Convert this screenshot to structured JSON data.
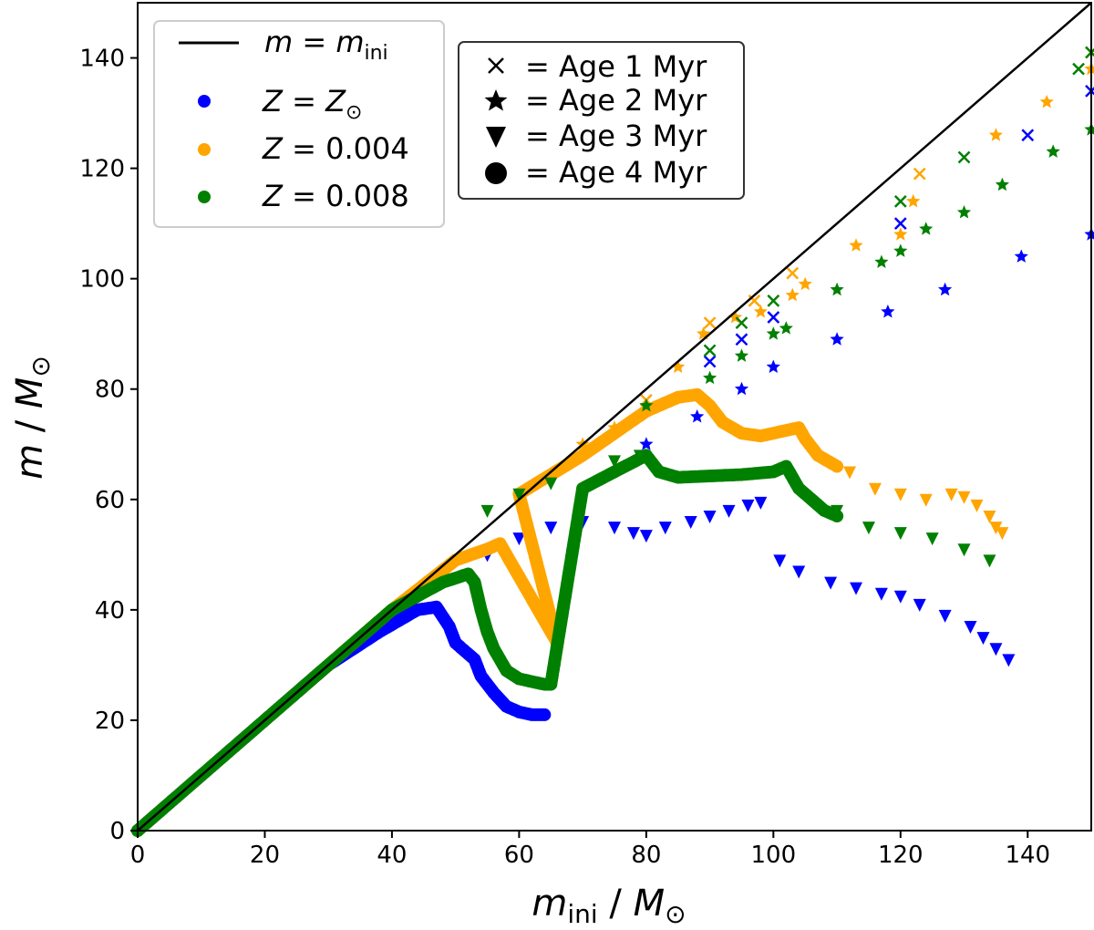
{
  "chart_data": {
    "type": "scatter",
    "xlabel": "m_ini / M_⊙",
    "ylabel": "m / M_⊙",
    "xlim": [
      0,
      150
    ],
    "ylim": [
      0,
      150
    ],
    "xticks": [
      0,
      20,
      40,
      60,
      80,
      100,
      120,
      140
    ],
    "yticks": [
      0,
      20,
      40,
      60,
      80,
      100,
      120,
      140
    ],
    "grid": false,
    "reference_line": {
      "label_math": "m = m_ini",
      "from": [
        0,
        0
      ],
      "to": [
        150,
        150
      ],
      "color": "#000000"
    },
    "legend_metallicity": {
      "placement": "top-left",
      "entries": [
        {
          "label": "m = m_ini",
          "marker": "line",
          "color": "#000000"
        },
        {
          "label": "Z = Z_⊙",
          "marker": "circle",
          "color": "#0000ff"
        },
        {
          "label": "Z = 0.004",
          "marker": "circle",
          "color": "#ffa500"
        },
        {
          "label": "Z = 0.008",
          "marker": "circle",
          "color": "#008000"
        }
      ]
    },
    "legend_age": {
      "placement": "top-center",
      "entries": [
        {
          "marker": "x",
          "label": "= Age 1 Myr"
        },
        {
          "marker": "star",
          "label": "= Age 2 Myr"
        },
        {
          "marker": "triangle-down",
          "label": "= Age 3 Myr"
        },
        {
          "marker": "circle",
          "label": "= Age 4 Myr"
        }
      ]
    },
    "series": [
      {
        "name": "Z = Z_⊙",
        "color": "#0000ff",
        "age1": [
          [
            90,
            85
          ],
          [
            95,
            89
          ],
          [
            100,
            93
          ],
          [
            120,
            110
          ],
          [
            140,
            126
          ],
          [
            150,
            134
          ]
        ],
        "age2": [
          [
            80,
            70
          ],
          [
            88,
            75
          ],
          [
            95,
            80
          ],
          [
            100,
            84
          ],
          [
            110,
            89
          ],
          [
            118,
            94
          ],
          [
            127,
            98
          ],
          [
            139,
            104
          ],
          [
            150,
            108
          ]
        ],
        "age3": [
          [
            55,
            50
          ],
          [
            60,
            53
          ],
          [
            65,
            55
          ],
          [
            70,
            56
          ],
          [
            75,
            55
          ],
          [
            78,
            54
          ],
          [
            80,
            53.5
          ],
          [
            83,
            55
          ],
          [
            87,
            56
          ],
          [
            90,
            57
          ],
          [
            93,
            58
          ],
          [
            96,
            59
          ],
          [
            98,
            59.5
          ],
          [
            101,
            49
          ],
          [
            104,
            47
          ],
          [
            109,
            45
          ],
          [
            113,
            44
          ],
          [
            117,
            43
          ],
          [
            120,
            42.5
          ],
          [
            123,
            41
          ],
          [
            127,
            39
          ],
          [
            131,
            37
          ],
          [
            133,
            35
          ],
          [
            135,
            33
          ],
          [
            137,
            31
          ]
        ],
        "age4": [
          [
            0,
            0
          ],
          [
            10,
            10
          ],
          [
            20,
            20
          ],
          [
            30,
            30
          ],
          [
            38,
            36
          ],
          [
            44,
            40
          ],
          [
            47,
            40.5
          ],
          [
            49,
            37
          ],
          [
            50,
            34
          ],
          [
            52,
            32
          ],
          [
            53,
            31
          ],
          [
            54,
            28
          ],
          [
            56,
            25
          ],
          [
            58,
            22.5
          ],
          [
            60,
            21.5
          ],
          [
            62,
            21
          ],
          [
            64,
            21
          ]
        ]
      },
      {
        "name": "Z = 0.004",
        "color": "#ffa500",
        "age1": [
          [
            80,
            78
          ],
          [
            90,
            92
          ],
          [
            97,
            96
          ],
          [
            103,
            101
          ],
          [
            123,
            119
          ],
          [
            150,
            141
          ]
        ],
        "age2": [
          [
            70,
            70
          ],
          [
            75,
            73
          ],
          [
            80,
            76
          ],
          [
            85,
            84
          ],
          [
            89,
            90
          ],
          [
            94,
            93
          ],
          [
            98,
            94
          ],
          [
            103,
            97
          ],
          [
            105,
            99
          ],
          [
            113,
            106
          ],
          [
            120,
            108
          ],
          [
            122,
            114
          ],
          [
            135,
            126
          ],
          [
            143,
            132
          ],
          [
            150,
            138
          ]
        ],
        "age3": [
          [
            112,
            65
          ],
          [
            116,
            62
          ],
          [
            120,
            61
          ],
          [
            124,
            60
          ],
          [
            128,
            61
          ],
          [
            130,
            60.5
          ],
          [
            132,
            59
          ],
          [
            134,
            57
          ],
          [
            135,
            55
          ],
          [
            136,
            54
          ]
        ],
        "age4": [
          [
            0,
            0
          ],
          [
            20,
            20
          ],
          [
            40,
            40
          ],
          [
            50,
            49
          ],
          [
            55,
            51
          ],
          [
            57,
            52
          ],
          [
            58,
            50
          ],
          [
            60,
            46
          ],
          [
            62,
            42
          ],
          [
            64,
            38
          ],
          [
            65,
            36
          ],
          [
            66,
            34
          ],
          [
            60,
            61
          ],
          [
            70,
            68
          ],
          [
            80,
            76
          ],
          [
            85,
            78.5
          ],
          [
            88,
            79
          ],
          [
            90,
            77
          ],
          [
            92,
            74
          ],
          [
            95,
            72
          ],
          [
            98,
            71.5
          ],
          [
            102,
            72.5
          ],
          [
            104,
            73
          ],
          [
            105,
            71
          ],
          [
            107,
            68
          ],
          [
            110,
            66
          ]
        ]
      },
      {
        "name": "Z = 0.008",
        "color": "#008000",
        "age1": [
          [
            90,
            87
          ],
          [
            95,
            92
          ],
          [
            100,
            96
          ],
          [
            120,
            114
          ],
          [
            130,
            122
          ],
          [
            148,
            138
          ],
          [
            150,
            141
          ]
        ],
        "age2": [
          [
            80,
            77
          ],
          [
            90,
            82
          ],
          [
            95,
            86
          ],
          [
            100,
            90
          ],
          [
            102,
            91
          ],
          [
            110,
            98
          ],
          [
            117,
            103
          ],
          [
            120,
            105
          ],
          [
            124,
            109
          ],
          [
            130,
            112
          ],
          [
            136,
            117
          ],
          [
            144,
            123
          ],
          [
            150,
            127
          ]
        ],
        "age3": [
          [
            55,
            58
          ],
          [
            60,
            61
          ],
          [
            65,
            63
          ],
          [
            75,
            67
          ],
          [
            79,
            68
          ],
          [
            110,
            58
          ],
          [
            115,
            55
          ],
          [
            120,
            54
          ],
          [
            125,
            53
          ],
          [
            130,
            51
          ],
          [
            134,
            49
          ]
        ],
        "age4": [
          [
            0,
            0
          ],
          [
            20,
            20
          ],
          [
            40,
            40
          ],
          [
            48,
            45
          ],
          [
            52,
            46.5
          ],
          [
            53,
            45
          ],
          [
            54,
            40
          ],
          [
            55,
            36
          ],
          [
            56,
            33
          ],
          [
            58,
            29
          ],
          [
            60,
            27.5
          ],
          [
            62,
            27
          ],
          [
            64,
            26.5
          ],
          [
            65,
            26.5
          ],
          [
            70,
            62
          ],
          [
            75,
            65
          ],
          [
            80,
            68
          ],
          [
            82,
            65
          ],
          [
            85,
            64
          ],
          [
            95,
            64.5
          ],
          [
            100,
            65
          ],
          [
            102,
            66
          ],
          [
            104,
            62
          ],
          [
            106,
            60
          ],
          [
            108,
            58
          ],
          [
            110,
            57
          ]
        ]
      }
    ]
  }
}
